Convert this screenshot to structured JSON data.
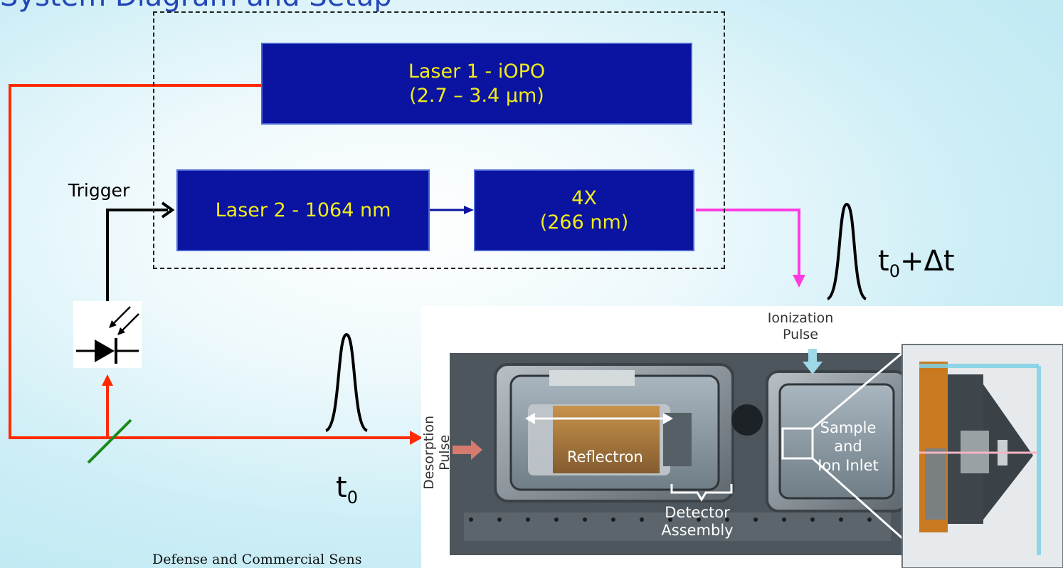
{
  "slide": {
    "title": "System Diagram and Setup",
    "footer": "Defense and Commercial Sens"
  },
  "boxes": {
    "laser1_line1": "Laser 1 - iOPO",
    "laser1_line2": "(2.7 – 3.4 µm)",
    "laser2": "Laser 2 - 1064 nm",
    "quad_line1": "4X",
    "quad_line2": "(266 nm)"
  },
  "labels": {
    "trigger": "Trigger",
    "t0": "t",
    "t0_sub": "0",
    "t0dt_t": "t",
    "t0dt_sub": "0",
    "t0dt_rest": "+Δt"
  },
  "photo": {
    "ionization_line1": "Ionization",
    "ionization_line2": "Pulse",
    "desorption_line1": "Desorption",
    "desorption_line2": "Pulse",
    "reflectron": "Reflectron",
    "sample_line1": "Sample",
    "sample_line2": "and",
    "sample_line3": "Ion Inlet",
    "detector_line1": "Detector",
    "detector_line2": "Assembly"
  },
  "colors": {
    "box_fill": "#0b14a0",
    "box_text": "#f1ec1a",
    "red_beam": "#ff2a00",
    "magenta_beam": "#ff3be0",
    "trigger_line": "#000000",
    "title": "#2346b8"
  }
}
